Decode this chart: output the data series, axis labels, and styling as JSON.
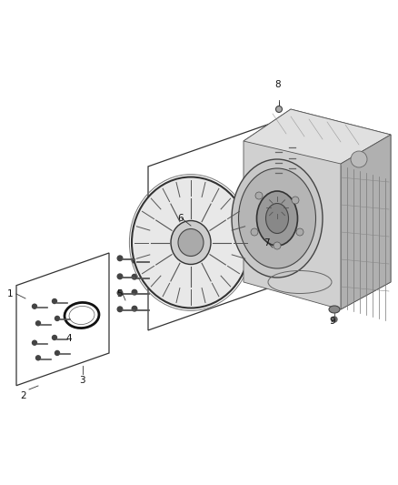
{
  "background_color": "#ffffff",
  "fig_width": 4.38,
  "fig_height": 5.33,
  "dpi": 100,
  "line_color": "#333333",
  "label_fontsize": 7.5,
  "gear_color": "#888888",
  "gear_fill": "#d0d0d0",
  "trans_body": "#c0c0c0",
  "trans_top": "#d5d5d5",
  "trans_front": "#b8b8b8"
}
